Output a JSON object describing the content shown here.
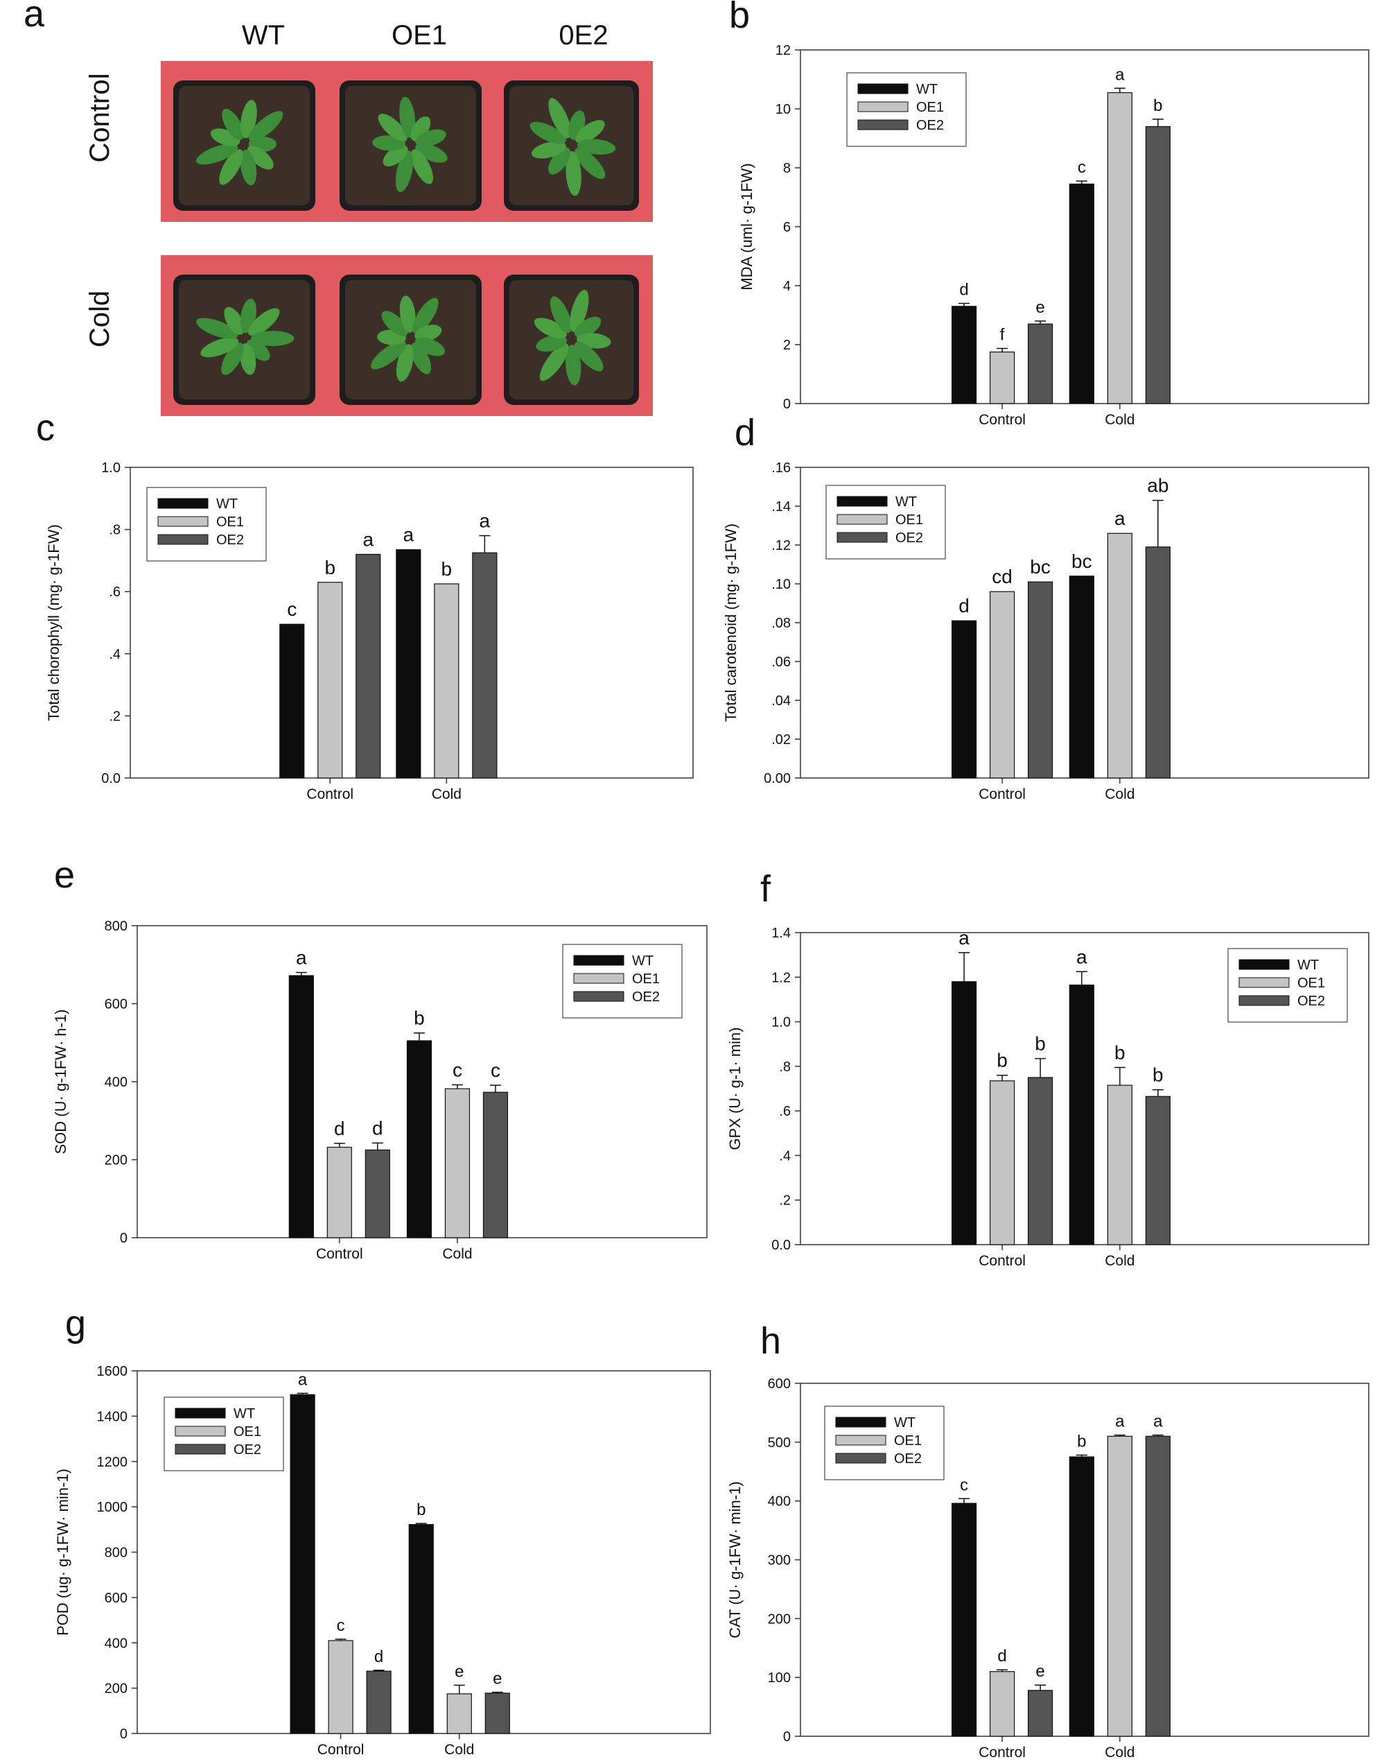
{
  "colors": {
    "wt": "#0d0d0d",
    "oe1": "#c4c4c4",
    "oe2": "#545454",
    "photo_bg": "#e05a60",
    "soil": "#3b2f28",
    "plant": "#3c8f38"
  },
  "photo_panel": {
    "letter": "a",
    "columns": [
      "WT",
      "OE1",
      "0E2"
    ],
    "rows": [
      "Control",
      "Cold"
    ]
  },
  "chart_data": [
    {
      "panel": "b",
      "type": "bar",
      "ylabel": "MDA (uml· g-1FW)",
      "ylim": [
        0,
        12
      ],
      "yticks": [
        "0",
        "2",
        "4",
        "6",
        "8",
        "10",
        "12"
      ],
      "ytick_values": [
        0,
        2,
        4,
        6,
        8,
        10,
        12
      ],
      "categories": [
        "Control",
        "Cold"
      ],
      "legend_pos": "top-left",
      "series": [
        {
          "name": "WT",
          "values": [
            3.3,
            7.45
          ],
          "errors": [
            0.1,
            0.1
          ],
          "letters": [
            "d",
            "c"
          ]
        },
        {
          "name": "OE1",
          "values": [
            1.75,
            10.55
          ],
          "errors": [
            0.12,
            0.15
          ],
          "letters": [
            "f",
            "a"
          ]
        },
        {
          "name": "OE2",
          "values": [
            2.7,
            9.4
          ],
          "errors": [
            0.1,
            0.25
          ],
          "letters": [
            "e",
            "b"
          ]
        }
      ]
    },
    {
      "panel": "c",
      "type": "bar",
      "ylabel": "Total chorophyll (mg· g-1FW)",
      "ylim": [
        0,
        1.0
      ],
      "yticks": [
        "0.0",
        ".2",
        ".4",
        ".6",
        ".8",
        "1.0"
      ],
      "ytick_values": [
        0,
        0.2,
        0.4,
        0.6,
        0.8,
        1.0
      ],
      "categories": [
        "Control",
        "Cold"
      ],
      "legend_pos": "top-left",
      "series": [
        {
          "name": "WT",
          "values": [
            0.495,
            0.735
          ],
          "errors": [
            0,
            0
          ],
          "letters": [
            "c",
            "a"
          ]
        },
        {
          "name": "OE1",
          "values": [
            0.63,
            0.625
          ],
          "errors": [
            0,
            0
          ],
          "letters": [
            "b",
            "b"
          ]
        },
        {
          "name": "OE2",
          "values": [
            0.72,
            0.725
          ],
          "errors": [
            0,
            0.055
          ],
          "letters": [
            "a",
            "a"
          ]
        }
      ]
    },
    {
      "panel": "d",
      "type": "bar",
      "ylabel": "Total carotenoid (mg· g-1FW)",
      "ylim": [
        0,
        0.16
      ],
      "yticks": [
        "0.00",
        ".02",
        ".04",
        ".06",
        ".08",
        ".10",
        ".12",
        ".14",
        ".16"
      ],
      "ytick_values": [
        0,
        0.02,
        0.04,
        0.06,
        0.08,
        0.1,
        0.12,
        0.14,
        0.16
      ],
      "categories": [
        "Control",
        "Cold"
      ],
      "legend_pos": "top-left",
      "series": [
        {
          "name": "WT",
          "values": [
            0.081,
            0.104
          ],
          "errors": [
            0,
            0
          ],
          "letters": [
            "d",
            "bc"
          ]
        },
        {
          "name": "OE1",
          "values": [
            0.096,
            0.126
          ],
          "errors": [
            0,
            0
          ],
          "letters": [
            "cd",
            "a"
          ]
        },
        {
          "name": "OE2",
          "values": [
            0.101,
            0.119
          ],
          "errors": [
            0,
            0.024
          ],
          "letters": [
            "bc",
            "ab"
          ]
        }
      ]
    },
    {
      "panel": "e",
      "type": "bar",
      "ylabel": "SOD (U· g-1FW· h-1)",
      "ylim": [
        0,
        800
      ],
      "yticks": [
        "0",
        "200",
        "400",
        "600",
        "800"
      ],
      "ytick_values": [
        0,
        200,
        400,
        600,
        800
      ],
      "categories": [
        "Control",
        "Cold"
      ],
      "legend_pos": "top-right",
      "series": [
        {
          "name": "WT",
          "values": [
            672,
            505
          ],
          "errors": [
            8,
            20
          ],
          "letters": [
            "a",
            "b"
          ]
        },
        {
          "name": "OE1",
          "values": [
            232,
            382
          ],
          "errors": [
            10,
            10
          ],
          "letters": [
            "d",
            "c"
          ]
        },
        {
          "name": "OE2",
          "values": [
            225,
            373
          ],
          "errors": [
            18,
            18
          ],
          "letters": [
            "d",
            "c"
          ]
        }
      ]
    },
    {
      "panel": "f",
      "type": "bar",
      "ylabel": "GPX (U· g-1· min)",
      "ylim": [
        0,
        1.4
      ],
      "yticks": [
        "0.0",
        ".2",
        ".4",
        ".6",
        ".8",
        "1.0",
        "1.2",
        "1.4"
      ],
      "ytick_values": [
        0,
        0.2,
        0.4,
        0.6,
        0.8,
        1.0,
        1.2,
        1.4
      ],
      "categories": [
        "Control",
        "Cold"
      ],
      "legend_pos": "top-right",
      "series": [
        {
          "name": "WT",
          "values": [
            1.18,
            1.165
          ],
          "errors": [
            0.13,
            0.06
          ],
          "letters": [
            "a",
            "a"
          ]
        },
        {
          "name": "OE1",
          "values": [
            0.735,
            0.715
          ],
          "errors": [
            0.025,
            0.08
          ],
          "letters": [
            "b",
            "b"
          ]
        },
        {
          "name": "OE2",
          "values": [
            0.75,
            0.665
          ],
          "errors": [
            0.085,
            0.03
          ],
          "letters": [
            "b",
            "b"
          ]
        }
      ]
    },
    {
      "panel": "g",
      "type": "bar",
      "ylabel": "POD (ug· g-1FW· min-1)",
      "ylim": [
        0,
        1600
      ],
      "yticks": [
        "0",
        "200",
        "400",
        "600",
        "800",
        "1000",
        "1200",
        "1400",
        "1600"
      ],
      "ytick_values": [
        0,
        200,
        400,
        600,
        800,
        1000,
        1200,
        1400,
        1600
      ],
      "categories": [
        "Control",
        "Cold"
      ],
      "legend_pos": "top-left",
      "series": [
        {
          "name": "WT",
          "values": [
            1495,
            922
          ],
          "errors": [
            6,
            5
          ],
          "letters": [
            "a",
            "b"
          ]
        },
        {
          "name": "OE1",
          "values": [
            410,
            175
          ],
          "errors": [
            6,
            38
          ],
          "letters": [
            "c",
            "e"
          ]
        },
        {
          "name": "OE2",
          "values": [
            275,
            178
          ],
          "errors": [
            4,
            4
          ],
          "letters": [
            "d",
            "e"
          ]
        }
      ]
    },
    {
      "panel": "h",
      "type": "bar",
      "ylabel": "CAT (U· g-1FW· min-1)",
      "ylim": [
        0,
        600
      ],
      "yticks": [
        "0",
        "100",
        "200",
        "300",
        "400",
        "500",
        "600"
      ],
      "ytick_values": [
        0,
        100,
        200,
        300,
        400,
        500,
        600
      ],
      "categories": [
        "Control",
        "Cold"
      ],
      "legend_pos": "top-left",
      "series": [
        {
          "name": "WT",
          "values": [
            396,
            475
          ],
          "errors": [
            8,
            3
          ],
          "letters": [
            "c",
            "b"
          ]
        },
        {
          "name": "OE1",
          "values": [
            110,
            510
          ],
          "errors": [
            3,
            2
          ],
          "letters": [
            "d",
            "a"
          ]
        },
        {
          "name": "OE2",
          "values": [
            78,
            510
          ],
          "errors": [
            9,
            2
          ],
          "letters": [
            "e",
            "a"
          ]
        }
      ]
    }
  ]
}
